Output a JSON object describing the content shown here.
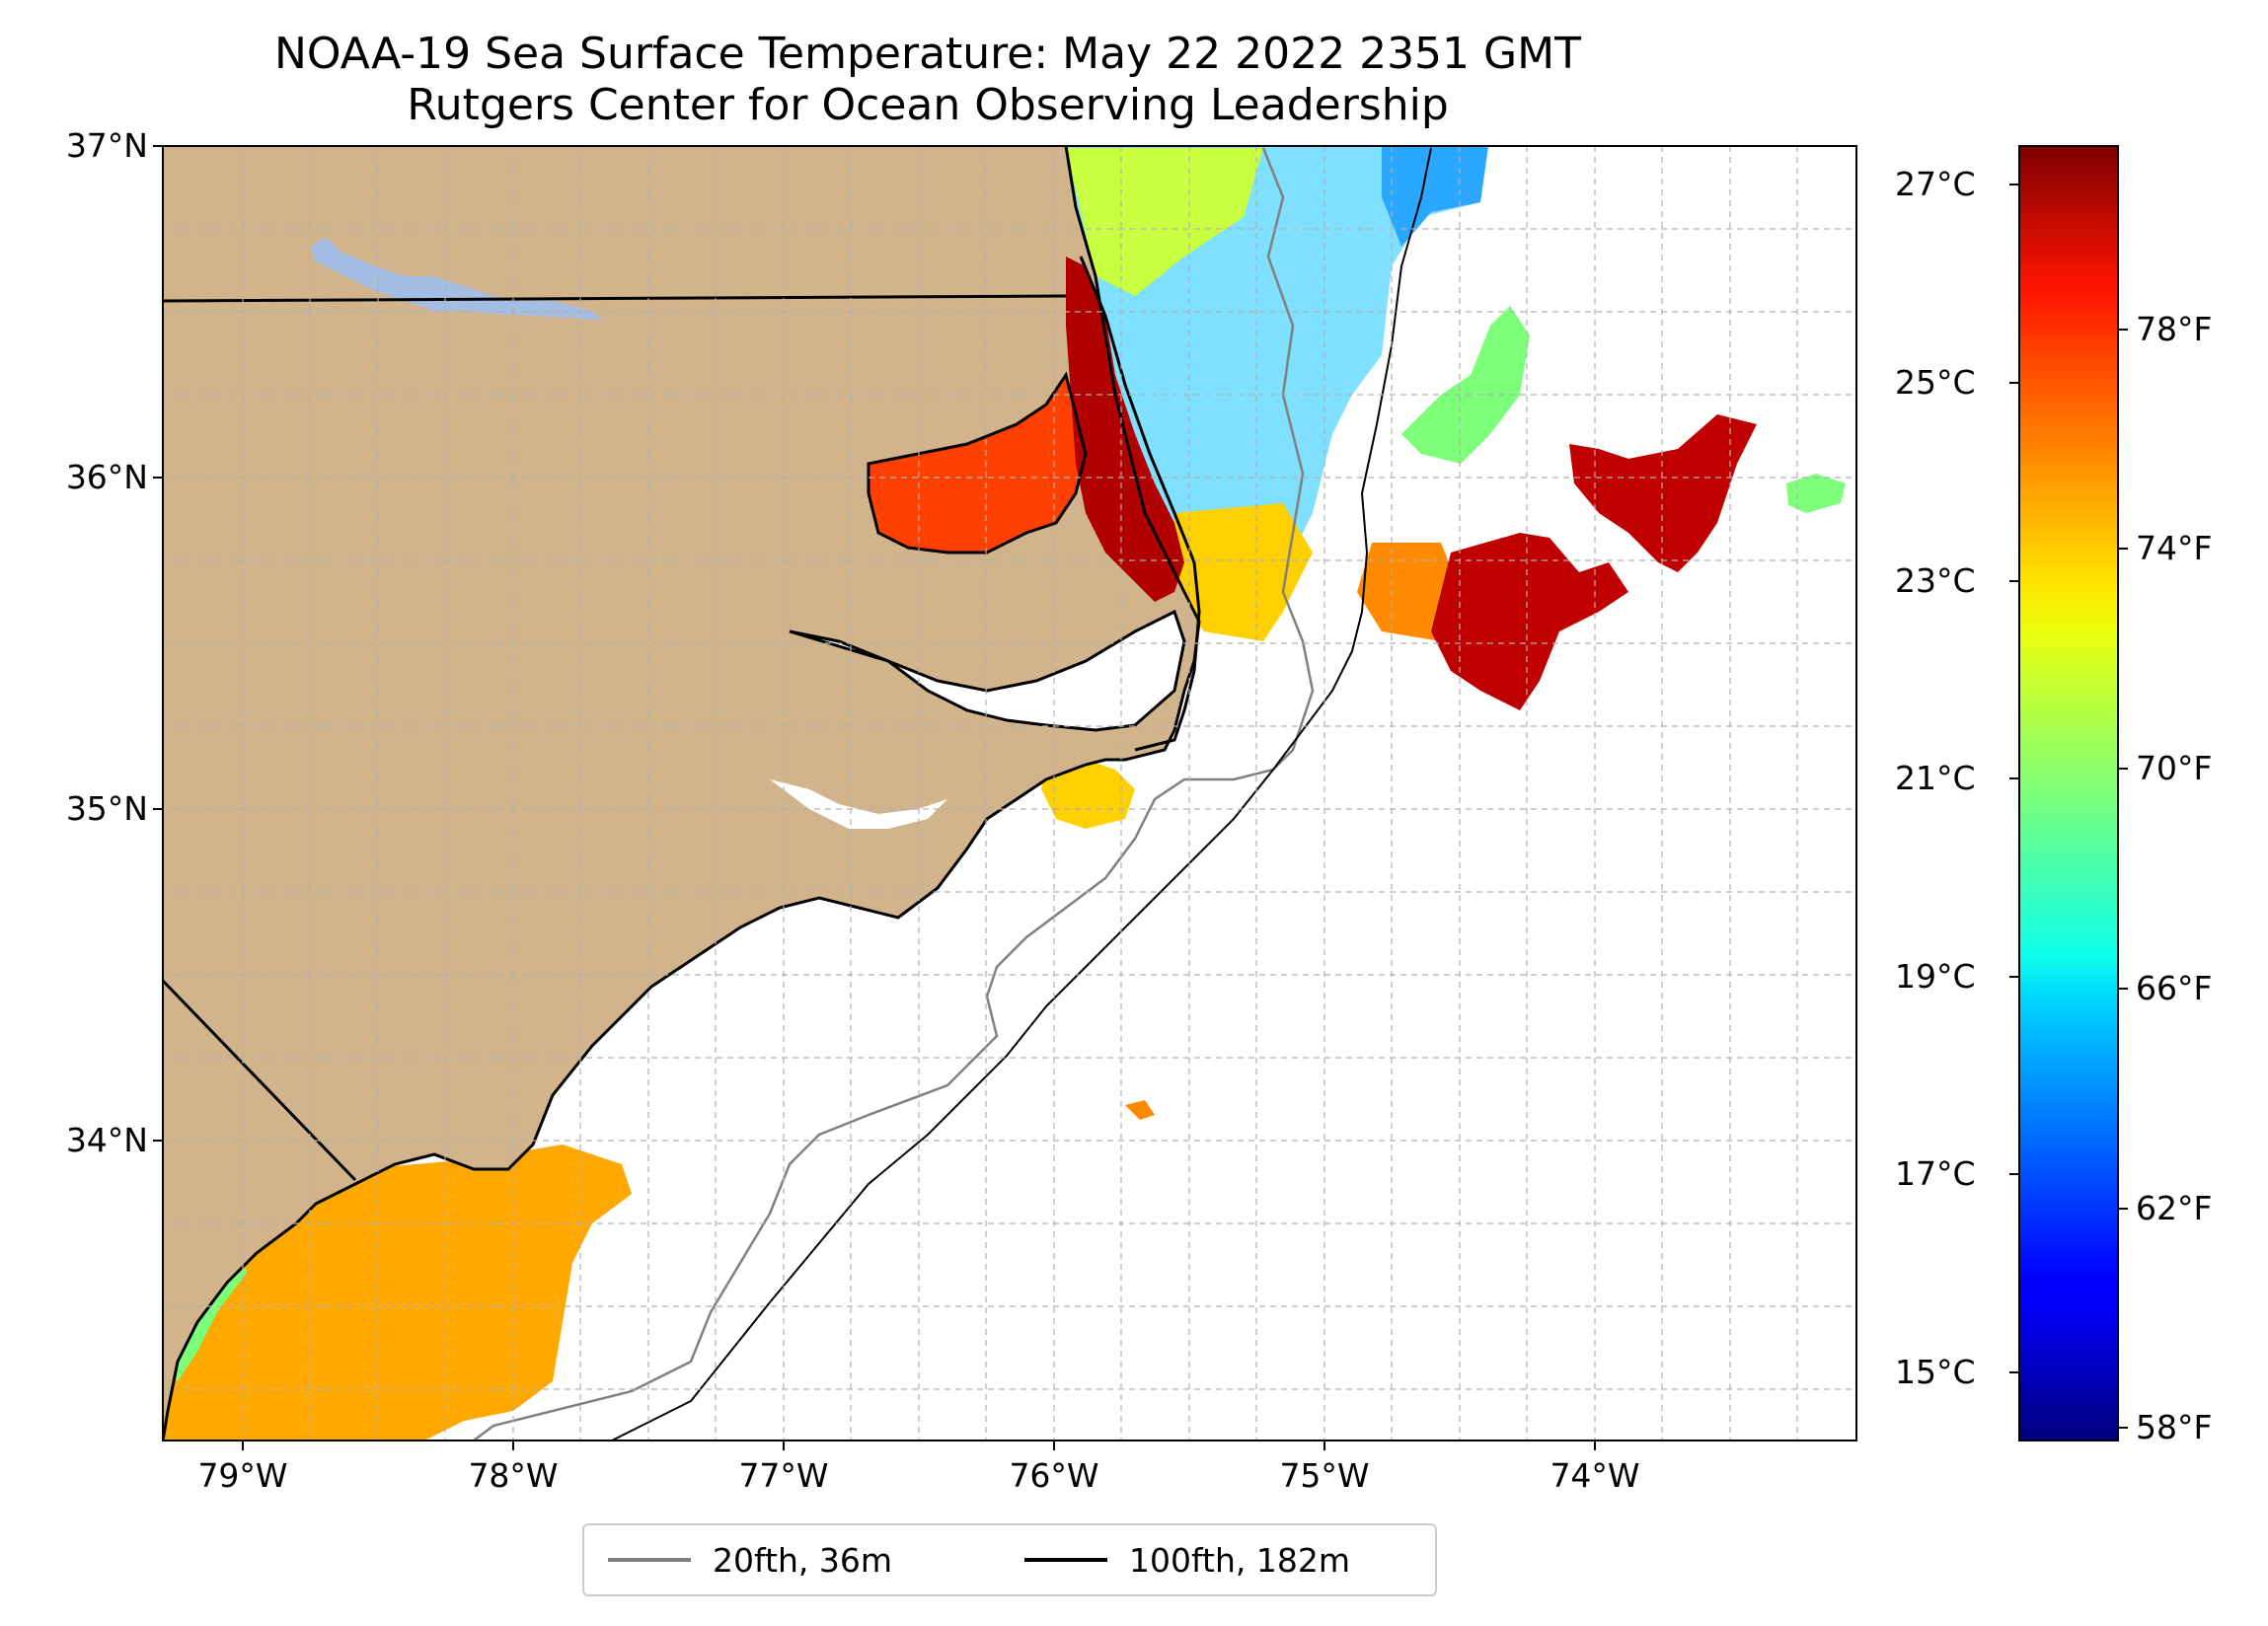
{
  "title": {
    "line1": "NOAA-19 Sea Surface Temperature: May 22 2022 2351 GMT",
    "line2": "Rutgers Center for Ocean Observing Leadership"
  },
  "map": {
    "lat_range": [
      33.1,
      37.0
    ],
    "lon_range": [
      -79.3,
      -73.1
    ],
    "lat_ticks": [
      "37°N",
      "36°N",
      "35°N",
      "34°N"
    ],
    "lon_ticks": [
      "79°W",
      "78°W",
      "77°W",
      "76°W",
      "75°W",
      "74°W"
    ],
    "colors": {
      "land": "#d2b48c",
      "lakes": "#a4bde3",
      "coast": "#000000",
      "isobath_20fth": "#808080",
      "isobath_100fth": "#000000",
      "grid": "#b0b0b0"
    }
  },
  "colorbar": {
    "colormap": "jet",
    "celsius_ticks": [
      "27°C",
      "25°C",
      "23°C",
      "21°C",
      "19°C",
      "17°C",
      "15°C"
    ],
    "fahrenheit_ticks": [
      "78°F",
      "74°F",
      "70°F",
      "66°F",
      "62°F",
      "58°F"
    ]
  },
  "legend": {
    "items": [
      {
        "label": "20fth, 36m",
        "color": "#808080"
      },
      {
        "label": "100fth, 182m",
        "color": "#000000"
      }
    ]
  }
}
